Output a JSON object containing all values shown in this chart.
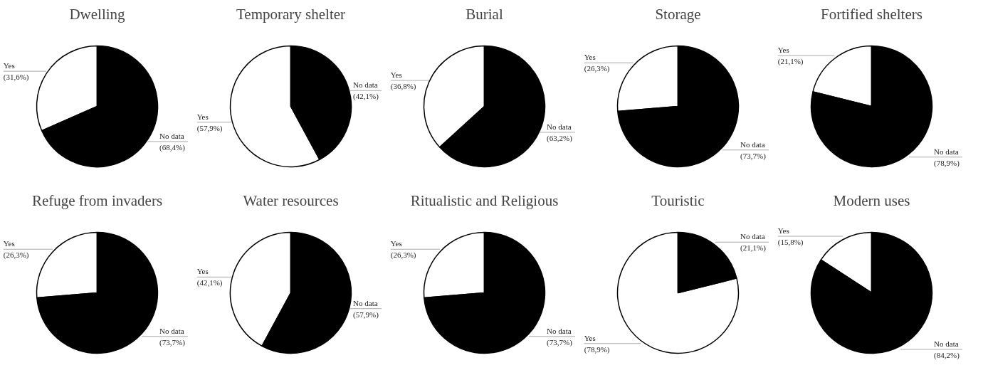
{
  "chart_data": [
    {
      "type": "pie",
      "title": "Dwelling",
      "categories": [
        "Yes",
        "No data"
      ],
      "values": [
        31.6,
        68.4
      ],
      "colors": [
        "#ffffff",
        "#000000"
      ],
      "value_labels": [
        "(31,6%)",
        "(68,4%)"
      ]
    },
    {
      "type": "pie",
      "title": "Temporary shelter",
      "categories": [
        "Yes",
        "No data"
      ],
      "values": [
        57.9,
        42.1
      ],
      "colors": [
        "#ffffff",
        "#000000"
      ],
      "value_labels": [
        "(57,9%)",
        "(42,1%)"
      ]
    },
    {
      "type": "pie",
      "title": "Burial",
      "categories": [
        "Yes",
        "No data"
      ],
      "values": [
        36.8,
        63.2
      ],
      "colors": [
        "#ffffff",
        "#000000"
      ],
      "value_labels": [
        "(36,8%)",
        "(63,2%)"
      ]
    },
    {
      "type": "pie",
      "title": "Storage",
      "categories": [
        "Yes",
        "No data"
      ],
      "values": [
        26.3,
        73.7
      ],
      "colors": [
        "#ffffff",
        "#000000"
      ],
      "value_labels": [
        "(26,3%)",
        "(73,7%)"
      ]
    },
    {
      "type": "pie",
      "title": "Fortified shelters",
      "categories": [
        "Yes",
        "No data"
      ],
      "values": [
        21.1,
        78.9
      ],
      "colors": [
        "#ffffff",
        "#000000"
      ],
      "value_labels": [
        "(21,1%)",
        "(78,9%)"
      ]
    },
    {
      "type": "pie",
      "title": "Refuge from invaders",
      "categories": [
        "Yes",
        "No data"
      ],
      "values": [
        26.3,
        73.7
      ],
      "colors": [
        "#ffffff",
        "#000000"
      ],
      "value_labels": [
        "(26,3%)",
        "(73,7%)"
      ]
    },
    {
      "type": "pie",
      "title": "Water resources",
      "categories": [
        "Yes",
        "No data"
      ],
      "values": [
        42.1,
        57.9
      ],
      "colors": [
        "#ffffff",
        "#000000"
      ],
      "value_labels": [
        "(42,1%)",
        "(57,9%)"
      ]
    },
    {
      "type": "pie",
      "title": "Ritualistic and Religious",
      "categories": [
        "Yes",
        "No data"
      ],
      "values": [
        26.3,
        73.7
      ],
      "colors": [
        "#ffffff",
        "#000000"
      ],
      "value_labels": [
        "(26,3%)",
        "(73,7%)"
      ]
    },
    {
      "type": "pie",
      "title": "Touristic",
      "categories": [
        "Yes",
        "No data"
      ],
      "values": [
        78.9,
        21.1
      ],
      "colors": [
        "#ffffff",
        "#000000"
      ],
      "value_labels": [
        "(78,9%)",
        "(21,1%)"
      ]
    },
    {
      "type": "pie",
      "title": "Modern uses",
      "categories": [
        "Yes",
        "No data"
      ],
      "values": [
        15.8,
        84.2
      ],
      "colors": [
        "#ffffff",
        "#000000"
      ],
      "value_labels": [
        "(15,8%)",
        "(84,2%)"
      ]
    }
  ]
}
